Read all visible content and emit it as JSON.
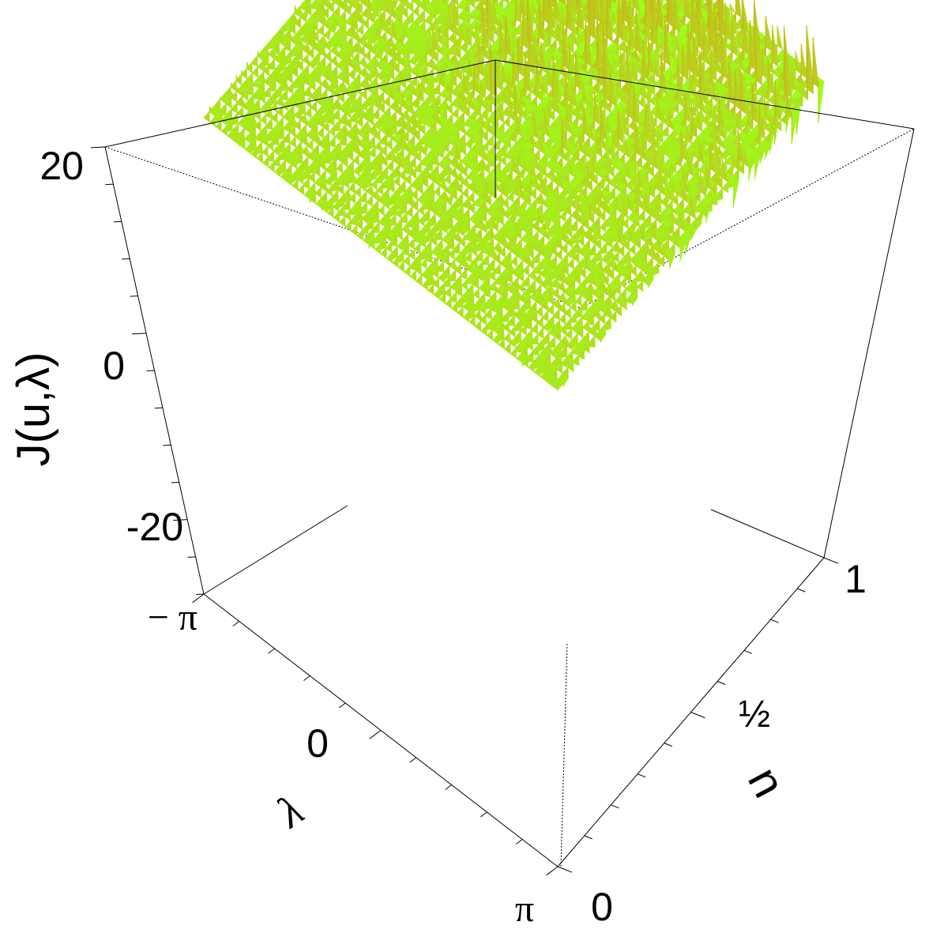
{
  "chart_data": {
    "type": "surface",
    "zlabel": "J(u,λ)",
    "xlabel": "λ",
    "ylabel": "u",
    "z_ticks": [
      "20",
      "0",
      "-20"
    ],
    "z_tick_values": [
      20,
      0,
      -20
    ],
    "lambda_ticks": [
      "− π",
      "0",
      "π"
    ],
    "lambda_tick_values": [
      -3.14159,
      0,
      3.14159
    ],
    "u_ticks": [
      "0",
      "½",
      "1"
    ],
    "u_tick_values": [
      0,
      0.5,
      1
    ],
    "zlim": [
      -30,
      24
    ],
    "lambda_lim": [
      -3.14159,
      3.14159
    ],
    "u_lim": [
      0,
      1
    ],
    "description_level": "J(u,λ) fluctuates around 0; amplitude grows as u approaches 1 and as λ approaches 0",
    "colors": {
      "low": "#9bff1a",
      "mid": "#b8d21e",
      "high": "#d4a21a",
      "box": "#000000"
    }
  }
}
